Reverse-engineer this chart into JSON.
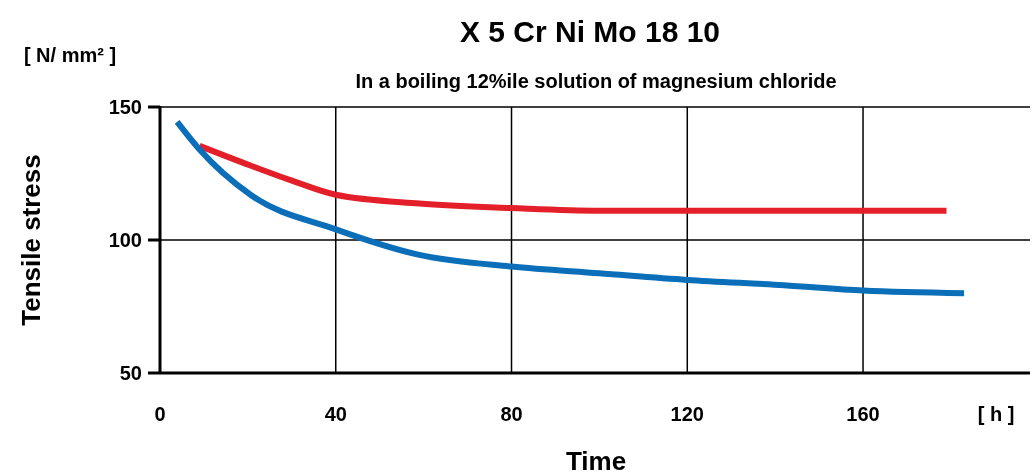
{
  "chart_data": {
    "type": "line",
    "title": "X 5 Cr Ni Mo 18 10",
    "subtitle": "In a boiling 12%ile solution of magnesium chloride",
    "xlabel": "Time",
    "ylabel": "Tensile stress",
    "annotations": [
      "[ N/ mm² ]",
      "[ h ]"
    ],
    "xlim": [
      0,
      198
    ],
    "xticks": [
      0,
      40,
      80,
      120,
      160
    ],
    "ylim": [
      50,
      150
    ],
    "yticks": [
      50,
      100,
      150
    ],
    "grid": true,
    "series": [
      {
        "color": "#e3202a",
        "x": [
          9,
          20.6,
          29.7,
          40,
          59,
          80,
          100,
          120,
          160,
          179
        ],
        "values": [
          135.4,
          128,
          122.5,
          117,
          113.7,
          112,
          111,
          111,
          111,
          111
        ]
      },
      {
        "color": "#0a6eb8",
        "x": [
          3.9,
          9,
          20.6,
          40,
          59,
          80,
          100,
          120,
          142,
          160,
          183
        ],
        "values": [
          144.4,
          134,
          117,
          104,
          94.4,
          90,
          87.5,
          85,
          83,
          81,
          80
        ]
      }
    ]
  }
}
